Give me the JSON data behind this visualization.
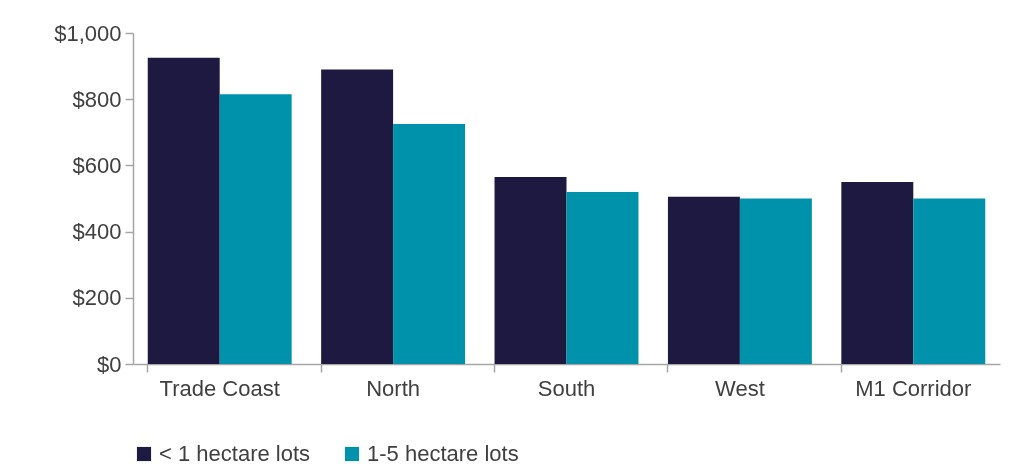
{
  "chart_data": {
    "type": "bar",
    "categories": [
      "Trade Coast",
      "North",
      "South",
      "West",
      "M1 Corridor"
    ],
    "series": [
      {
        "name": "< 1 hectare lots",
        "color": "#1e1940",
        "values": [
          925,
          890,
          565,
          505,
          550
        ]
      },
      {
        "name": "1-5 hectare lots",
        "color": "#0092ab",
        "values": [
          815,
          725,
          520,
          500,
          500
        ]
      }
    ],
    "ylim": [
      0,
      1000
    ],
    "yticks": [
      {
        "value": 0,
        "label": "$0"
      },
      {
        "value": 200,
        "label": "$200"
      },
      {
        "value": 400,
        "label": "$400"
      },
      {
        "value": 600,
        "label": "$600"
      },
      {
        "value": 800,
        "label": "$800"
      },
      {
        "value": 1000,
        "label": "$1,000"
      }
    ],
    "grid": false,
    "legend": "bottom"
  }
}
